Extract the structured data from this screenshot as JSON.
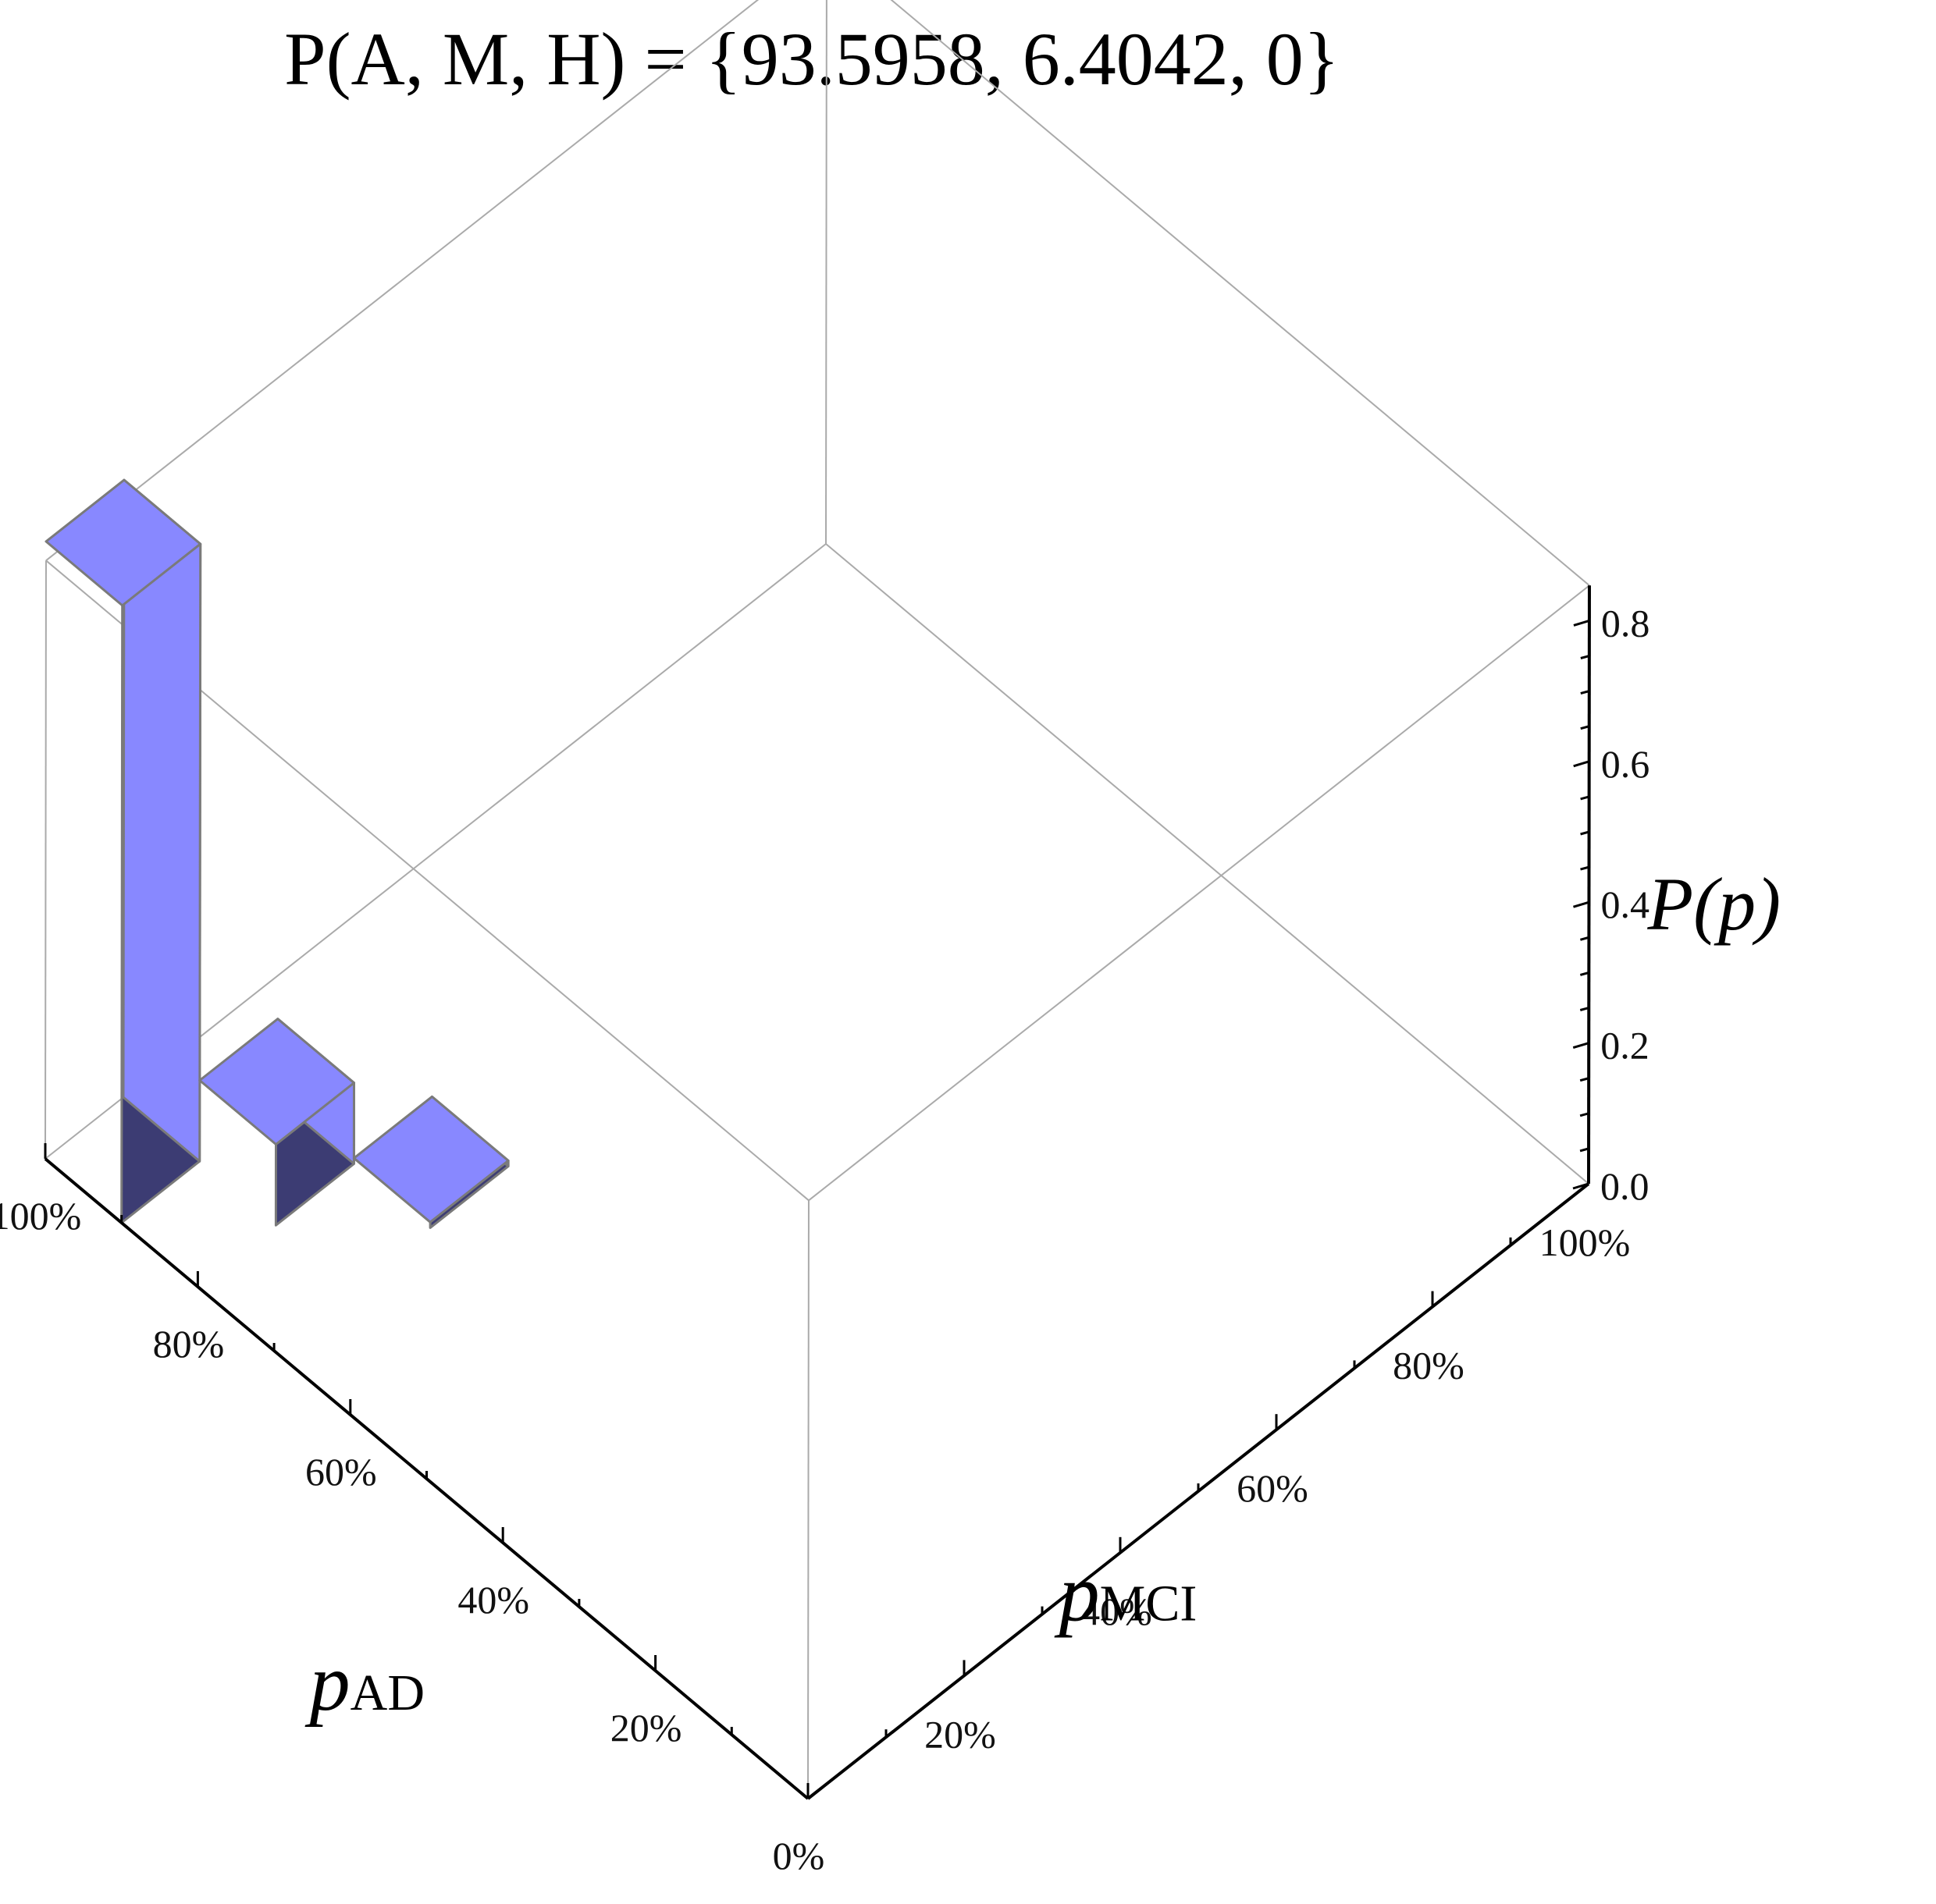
{
  "chart_data": {
    "type": "bar3d",
    "title": "P(A, M, H) = {93.5958, 6.4042, 0}",
    "x_axis": {
      "label_main": "p",
      "label_sub": "AD",
      "tick_labels": [
        "0%",
        "20%",
        "40%",
        "60%",
        "80%",
        "100%"
      ],
      "ticks": [
        0,
        20,
        40,
        60,
        80,
        100
      ]
    },
    "y_axis": {
      "label_main": "p",
      "label_sub": "MCI",
      "tick_labels": [
        "20%",
        "40%",
        "60%",
        "80%",
        "100%"
      ],
      "ticks": [
        20,
        40,
        60,
        80,
        100
      ]
    },
    "z_axis": {
      "label": "P(p)",
      "tick_labels": [
        "0.0",
        "0.2",
        "0.4",
        "0.6",
        "0.8"
      ],
      "ticks": [
        0.0,
        0.2,
        0.4,
        0.6,
        0.8
      ],
      "range": [
        0,
        0.85
      ]
    },
    "bars": [
      {
        "p_AD": 100,
        "p_MCI": 0,
        "value": 0.877
      },
      {
        "p_AD": 90,
        "p_MCI": 10,
        "value": 0.115
      },
      {
        "p_AD": 80,
        "p_MCI": 20,
        "value": 0.008
      }
    ],
    "grid": false,
    "colors": {
      "bar_top": "#8888ff",
      "bar_front": "#8888ff",
      "bar_side": "#3c3c73",
      "bar_edge": "#7a7a7a",
      "box": "#aaaaaa",
      "axis": "#000000"
    }
  }
}
